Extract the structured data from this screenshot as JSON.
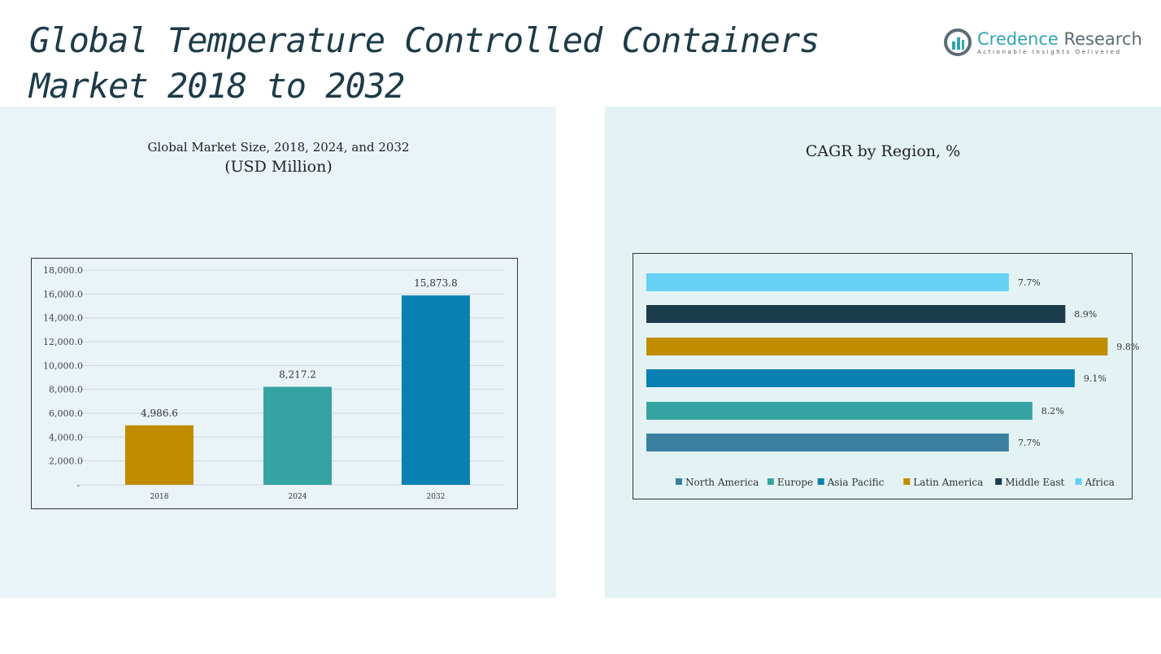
{
  "title_line1": "Global Temperature Controlled Containers",
  "title_line2": "Market 2018 to 2032",
  "logo": {
    "name_a": "Credence",
    "name_b": " Research",
    "tagline": "Actionable Insights Delivered"
  },
  "chart_data": [
    {
      "type": "bar",
      "title": "Global Market Size, 2018, 2024, and 2032",
      "subtitle": "(USD Million)",
      "categories": [
        "2018",
        "2024",
        "2032"
      ],
      "values": [
        4986.6,
        8217.2,
        15873.8
      ],
      "value_labels": [
        "4,986.6",
        "8,217.2",
        "15,873.8"
      ],
      "colors": [
        "#c08c00",
        "#36a3a3",
        "#0880b2"
      ],
      "ylim": [
        0,
        18000
      ],
      "yticks": [
        0,
        2000,
        4000,
        6000,
        8000,
        10000,
        12000,
        14000,
        16000,
        18000
      ],
      "ytick_labels": [
        "-",
        "2,000.0",
        "4,000.0",
        "6,000.0",
        "8,000.0",
        "10,000.0",
        "12,000.0",
        "14,000.0",
        "16,000.0",
        "18,000.0"
      ],
      "grid": true
    },
    {
      "type": "bar",
      "orientation": "horizontal",
      "title": "CAGR by Region, %",
      "categories": [
        "North America",
        "Europe",
        "Asia Pacific",
        "Latin America",
        "Middle East",
        "Africa"
      ],
      "values": [
        7.7,
        8.2,
        9.1,
        9.8,
        8.9,
        7.7
      ],
      "value_labels": [
        "7.7%",
        "8.2%",
        "9.1%",
        "9.8%",
        "8.9%",
        "7.7%"
      ],
      "colors": [
        "#3a7fa0",
        "#36a3a3",
        "#0880b2",
        "#c08c00",
        "#1a3b4a",
        "#66d0f5"
      ],
      "legend": "bottom"
    }
  ]
}
